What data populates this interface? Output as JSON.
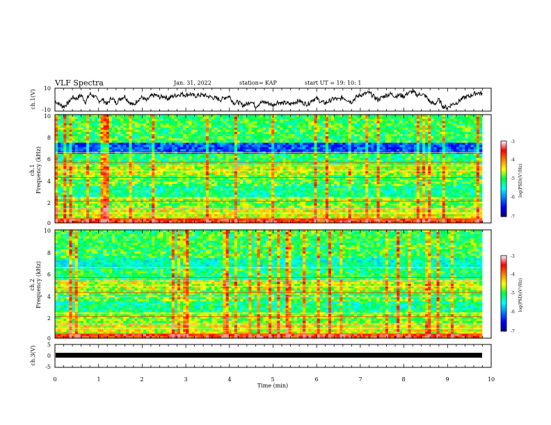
{
  "header": {
    "title": "VLF Spectra",
    "date": "Jan. 31, 2022",
    "station": "station= KAP",
    "start_ut": "start  UT  =   19: 10: 1"
  },
  "chart_data": [
    {
      "type": "line",
      "name": "ch1-voltage",
      "ylabel": "ch.1(V)",
      "ylim": [
        -10,
        10
      ],
      "y_ticks": [
        "10",
        "-10"
      ],
      "xlim": [
        0,
        10
      ],
      "x": [
        0.0,
        0.1,
        0.2,
        0.3,
        0.4,
        0.5,
        0.6,
        0.7,
        0.8,
        0.9,
        1.0,
        1.1,
        1.2,
        1.3,
        1.4,
        1.5,
        1.6,
        1.7,
        1.8,
        1.9,
        2.0,
        2.1,
        2.2,
        2.3,
        2.4,
        2.5,
        2.6,
        2.7,
        2.8,
        2.9,
        3.0,
        3.1,
        3.2,
        3.3,
        3.4,
        3.5,
        3.6,
        3.7,
        3.8,
        3.9,
        4.0,
        4.1,
        4.2,
        4.3,
        4.4,
        4.5,
        4.6,
        4.7,
        4.8,
        4.9,
        5.0,
        5.1,
        5.2,
        5.3,
        5.4,
        5.5,
        5.6,
        5.7,
        5.8,
        5.9,
        6.0,
        6.1,
        6.2,
        6.3,
        6.4,
        6.5,
        6.6,
        6.7,
        6.8,
        6.9,
        7.0,
        7.1,
        7.2,
        7.3,
        7.4,
        7.5,
        7.6,
        7.7,
        7.8,
        7.9,
        8.0,
        8.1,
        8.2,
        8.3,
        8.4,
        8.5,
        8.6,
        8.7,
        8.8,
        8.9,
        9.0,
        9.1,
        9.2,
        9.3,
        9.4,
        9.5,
        9.6,
        9.7,
        9.8
      ],
      "values": [
        -1,
        -4,
        -6,
        -3,
        2,
        1,
        4,
        -2,
        5,
        3,
        -1,
        0,
        -4,
        2,
        -3,
        1,
        3,
        -2,
        -5,
        0,
        2,
        -1,
        3,
        4,
        2,
        3,
        1,
        3,
        4,
        5,
        4,
        5,
        3,
        4,
        4,
        3,
        2,
        1,
        0,
        2,
        3,
        -3,
        -2,
        -5,
        -4,
        -1,
        -6,
        -3,
        -2,
        -3,
        -5,
        -2,
        -3,
        -3,
        -4,
        -2,
        -1,
        -3,
        -4,
        0,
        1,
        -2,
        -3,
        -1,
        1,
        0,
        2,
        0,
        -2,
        2,
        4,
        5,
        6,
        3,
        0,
        2,
        4,
        5,
        3,
        4,
        3,
        6,
        7,
        4,
        5,
        3,
        -2,
        -4,
        0,
        -6,
        -7,
        -4,
        -3,
        0,
        2,
        3,
        5,
        6,
        5
      ]
    },
    {
      "type": "heatmap",
      "name": "ch1-spectrogram",
      "ylabel": "ch.1\nFrequency (kHz)",
      "ylim": [
        0,
        10
      ],
      "y_ticks": [
        "0",
        "2",
        "4",
        "6",
        "8",
        "10"
      ],
      "xlim": [
        0,
        10
      ],
      "colorbar": {
        "label": "log(PSD)(V²/Hz)",
        "range": [
          -7,
          -3
        ],
        "ticks": [
          "-3",
          "-4",
          "-5",
          "-6",
          "-7"
        ]
      }
    },
    {
      "type": "heatmap",
      "name": "ch2-spectrogram",
      "ylabel": "ch.2\nFrequency (kHz)",
      "ylim": [
        0,
        10
      ],
      "y_ticks": [
        "0",
        "2",
        "4",
        "6",
        "8",
        "10"
      ],
      "xlim": [
        0,
        10
      ],
      "colorbar": {
        "label": "log(PSD)(V²/Hz)",
        "range": [
          -7,
          -3
        ],
        "ticks": [
          "-3",
          "-4",
          "-5",
          "-6",
          "-7"
        ]
      }
    },
    {
      "type": "line",
      "name": "ch3-voltage",
      "ylabel": "ch.3(V)",
      "ylim": [
        -5,
        5
      ],
      "y_ticks": [
        "5",
        "0",
        "-5"
      ],
      "xlim": [
        0,
        10
      ],
      "values": [
        0
      ]
    }
  ],
  "x_axis": {
    "label": "Time (min)",
    "ticks": [
      "0",
      "1",
      "2",
      "3",
      "4",
      "5",
      "6",
      "7",
      "8",
      "9",
      "10"
    ]
  },
  "panel1_label": "ch.1(V)",
  "panel2_label_a": "ch.1",
  "panel2_label_b": "Frequency (kHz)",
  "panel3_label_a": "ch.2",
  "panel3_label_b": "Frequency (kHz)",
  "panel4_label": "ch.3(V)",
  "colorbar_label": "log(PSD)(V²/Hz)"
}
